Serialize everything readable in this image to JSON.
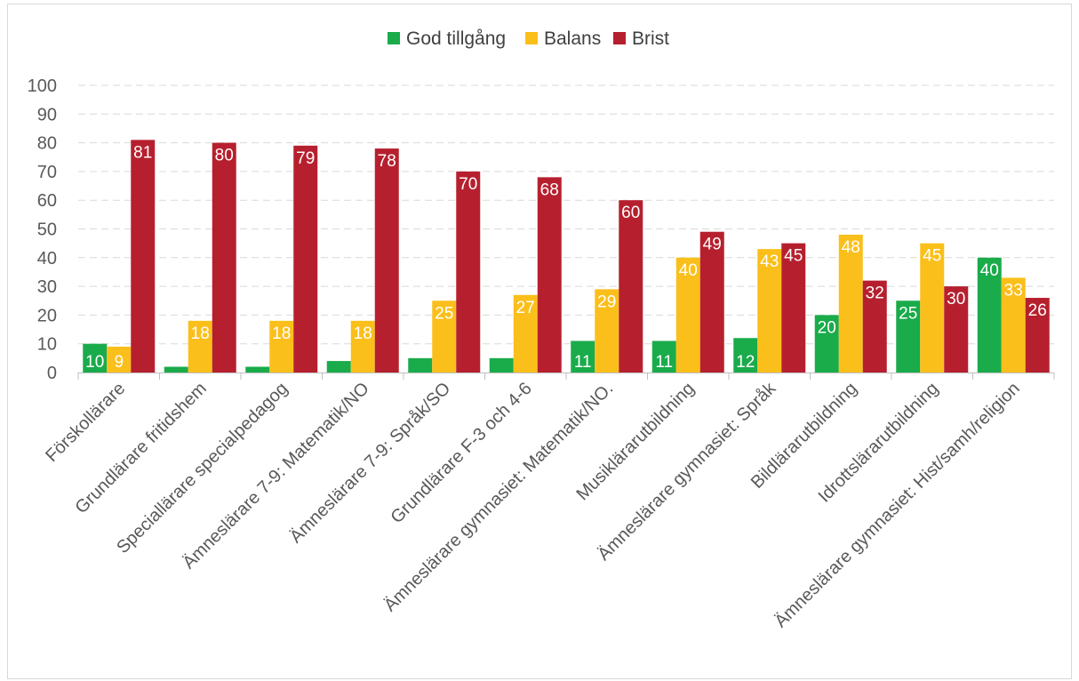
{
  "chart_data": {
    "type": "bar",
    "title": "",
    "xlabel": "",
    "ylabel": "",
    "ylim": [
      0,
      100
    ],
    "yticks": [
      0,
      10,
      20,
      30,
      40,
      50,
      60,
      70,
      80,
      90,
      100
    ],
    "grid": "horizontal dashed",
    "legend_position": "top",
    "categories": [
      "Förskollärare",
      "Grundlärare fritidshem",
      "Speciallärare specialpedagog",
      "Ämneslärare 7-9: Matematik/NO",
      "Ämneslärare 7-9: Språk/SO",
      "Grundlärare F-3 och 4-6",
      "Ämneslärare gymnasiet: Matematik/NO.",
      "Musiklärarutbildning",
      "Ämneslärare gymnasiet: Språk",
      "Bildlärarutbildning",
      "Idrottslärarutbildning",
      "Ämneslärare gymnasiet: Hist/samh/religion"
    ],
    "series": [
      {
        "name": "God tillgång",
        "color": "#1aab4b",
        "values": [
          10,
          2,
          2,
          4,
          5,
          5,
          11,
          11,
          12,
          20,
          25,
          40
        ],
        "labels": [
          "10",
          "",
          "",
          "",
          "",
          "",
          "11",
          "11",
          "12",
          "20",
          "25",
          "40"
        ]
      },
      {
        "name": "Balans",
        "color": "#fbbf1b",
        "values": [
          9,
          18,
          18,
          18,
          25,
          27,
          29,
          40,
          43,
          48,
          45,
          33
        ],
        "labels": [
          "9",
          "18",
          "18",
          "18",
          "25",
          "27",
          "29",
          "40",
          "43",
          "48",
          "45",
          "33"
        ]
      },
      {
        "name": "Brist",
        "color": "#b6202e",
        "values": [
          81,
          80,
          79,
          78,
          70,
          68,
          60,
          49,
          45,
          32,
          30,
          26
        ],
        "labels": [
          "81",
          "80",
          "79",
          "78",
          "70",
          "68",
          "60",
          "49",
          "45",
          "32",
          "30",
          "26"
        ]
      }
    ]
  }
}
